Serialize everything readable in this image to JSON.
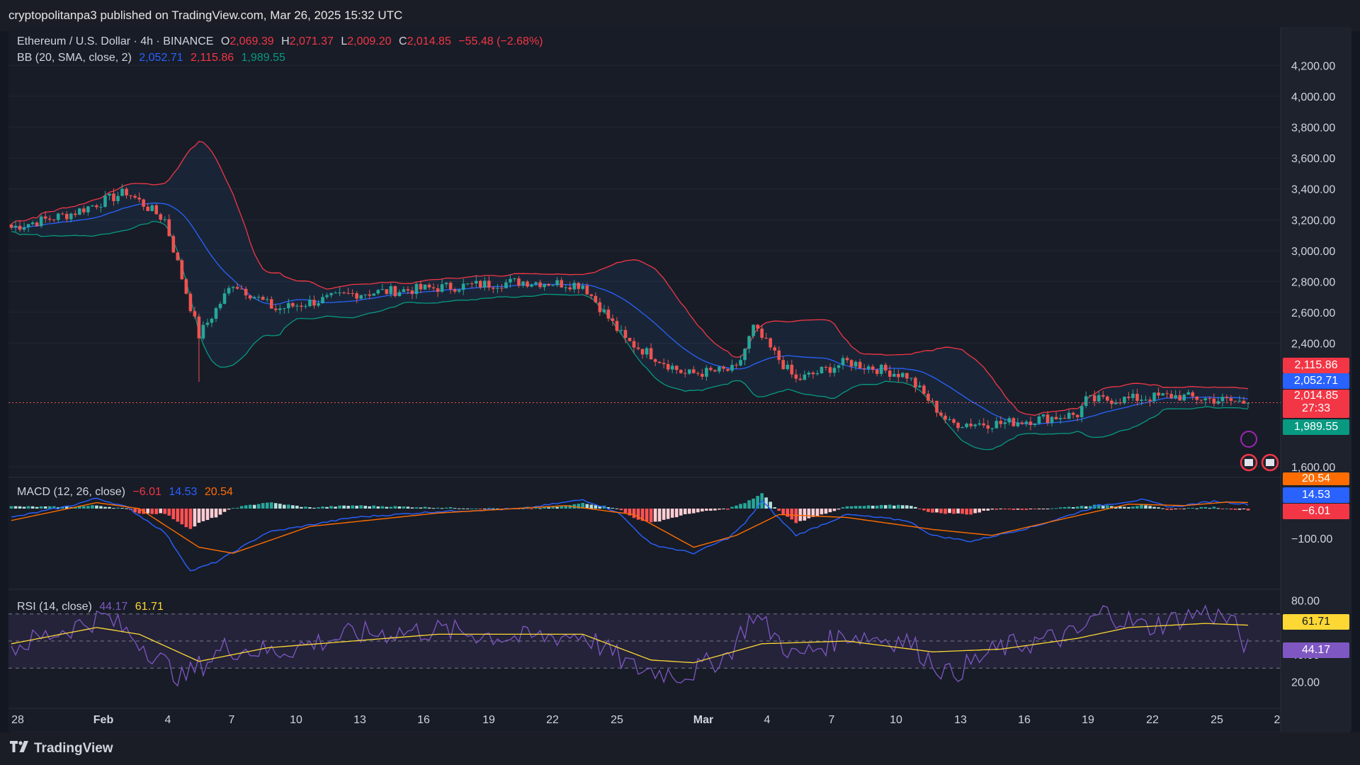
{
  "header": {
    "attribution": "cryptopolitanpa3 published on TradingView.com, Mar 26, 2025 15:32 UTC"
  },
  "footer": {
    "brand": "TradingView"
  },
  "legend": {
    "symbol": "Ethereum / U.S. Dollar · 4h · BINANCE",
    "o_label": "O",
    "o_value": "2,069.39",
    "h_label": "H",
    "h_value": "2,071.37",
    "l_label": "L",
    "l_value": "2,009.20",
    "c_label": "C",
    "c_value": "2,014.85",
    "change": "−55.48 (−2.68%)",
    "bb_label": "BB (20, SMA, close, 2)",
    "bb_basis": "2,052.71",
    "bb_upper": "2,115.86",
    "bb_lower": "1,989.55",
    "macd_label": "MACD (12, 26, close)",
    "macd_hist": "−6.01",
    "macd_line": "14.53",
    "macd_signal": "20.54",
    "rsi_label": "RSI (14, close)",
    "rsi_value": "44.17",
    "rsi_ma": "61.71"
  },
  "price_tags": {
    "bb_upper": "2,115.86",
    "bb_basis": "2,052.71",
    "close": "2,014.85",
    "countdown": "27:33",
    "bb_lower": "1,989.55",
    "macd_signal": "20.54",
    "macd_line": "14.53",
    "macd_hist": "−6.01",
    "rsi_ma": "61.71",
    "rsi": "44.17"
  },
  "colors": {
    "up": "#26a69a",
    "down": "#ef5350",
    "basis": "#2962ff",
    "upper": "#f23645",
    "lower": "#089981",
    "macd": "#2962ff",
    "signal": "#ff6d00",
    "rsi": "#7e57c2",
    "rsi_ma": "#fdd835"
  },
  "chart_data": [
    {
      "type": "candlestick",
      "title": "Ethereum / U.S. Dollar · 4h · BINANCE",
      "y_ticks": [
        "4,200.00",
        "4,000.00",
        "3,800.00",
        "3,600.00",
        "3,400.00",
        "3,200.00",
        "3,000.00",
        "2,800.00",
        "2,600.00",
        "2,400.00",
        "1,600.00"
      ],
      "y_tick_values": [
        4200,
        4000,
        3800,
        3600,
        3400,
        3200,
        3000,
        2800,
        2600,
        2400,
        1600
      ],
      "x_ticks": [
        "28",
        "Feb",
        "4",
        "7",
        "10",
        "13",
        "16",
        "19",
        "22",
        "25",
        "Mar",
        "4",
        "7",
        "10",
        "13",
        "16",
        "19",
        "22",
        "25",
        "2"
      ],
      "ylim": [
        1540,
        4280
      ],
      "close_keypoints": [
        [
          0,
          3150
        ],
        [
          14,
          3240
        ],
        [
          27,
          3380
        ],
        [
          36,
          3200
        ],
        [
          44,
          2450
        ],
        [
          52,
          2790
        ],
        [
          62,
          2620
        ],
        [
          80,
          2720
        ],
        [
          100,
          2760
        ],
        [
          120,
          2800
        ],
        [
          134,
          2780
        ],
        [
          144,
          2420
        ],
        [
          158,
          2200
        ],
        [
          170,
          2230
        ],
        [
          174,
          2500
        ],
        [
          184,
          2160
        ],
        [
          196,
          2280
        ],
        [
          210,
          2190
        ],
        [
          220,
          1880
        ],
        [
          232,
          1880
        ],
        [
          250,
          1940
        ],
        [
          252,
          2030
        ],
        [
          263,
          2040
        ],
        [
          272,
          2060
        ],
        [
          280,
          2040
        ],
        [
          290,
          2014.85
        ]
      ],
      "bb": {
        "basis": 2052.71,
        "upper": 2115.86,
        "lower": 1989.55
      },
      "last_close": 2014.85
    },
    {
      "type": "line",
      "title": "MACD (12, 26, close)",
      "y_ticks": [
        "−100.00"
      ],
      "series": [
        {
          "name": "MACD",
          "keypoints": [
            [
              0,
              -30
            ],
            [
              14,
              10
            ],
            [
              20,
              35
            ],
            [
              27,
              5
            ],
            [
              36,
              -80
            ],
            [
              42,
              -210
            ],
            [
              48,
              -180
            ],
            [
              60,
              -80
            ],
            [
              80,
              -30
            ],
            [
              100,
              -10
            ],
            [
              120,
              0
            ],
            [
              134,
              30
            ],
            [
              142,
              -10
            ],
            [
              150,
              -120
            ],
            [
              160,
              -150
            ],
            [
              168,
              -100
            ],
            [
              172,
              -50
            ],
            [
              176,
              25
            ],
            [
              184,
              -90
            ],
            [
              196,
              -20
            ],
            [
              210,
              -40
            ],
            [
              216,
              -90
            ],
            [
              225,
              -110
            ],
            [
              240,
              -60
            ],
            [
              255,
              10
            ],
            [
              265,
              30
            ],
            [
              272,
              5
            ],
            [
              282,
              25
            ],
            [
              290,
              14.53
            ]
          ]
        },
        {
          "name": "Signal",
          "keypoints": [
            [
              0,
              -40
            ],
            [
              20,
              20
            ],
            [
              30,
              0
            ],
            [
              44,
              -130
            ],
            [
              52,
              -150
            ],
            [
              70,
              -60
            ],
            [
              100,
              -15
            ],
            [
              130,
              10
            ],
            [
              146,
              -20
            ],
            [
              160,
              -130
            ],
            [
              170,
              -90
            ],
            [
              180,
              -20
            ],
            [
              196,
              -30
            ],
            [
              216,
              -70
            ],
            [
              230,
              -90
            ],
            [
              245,
              -40
            ],
            [
              262,
              15
            ],
            [
              275,
              10
            ],
            [
              285,
              22
            ],
            [
              290,
              20.54
            ]
          ]
        },
        {
          "name": "Histogram",
          "last": -6.01
        }
      ]
    },
    {
      "type": "line",
      "title": "RSI (14, close)",
      "y_ticks": [
        "80.00",
        "40.00",
        "20.00"
      ],
      "ylim": [
        15,
        85
      ],
      "series": [
        {
          "name": "RSI",
          "keypoints": [
            [
              0,
              45
            ],
            [
              14,
              60
            ],
            [
              22,
              68
            ],
            [
              30,
              50
            ],
            [
              40,
              22
            ],
            [
              50,
              45
            ],
            [
              62,
              42
            ],
            [
              80,
              55
            ],
            [
              100,
              58
            ],
            [
              120,
              52
            ],
            [
              134,
              55
            ],
            [
              146,
              30
            ],
            [
              158,
              25
            ],
            [
              168,
              40
            ],
            [
              174,
              70
            ],
            [
              184,
              38
            ],
            [
              196,
              55
            ],
            [
              210,
              50
            ],
            [
              220,
              25
            ],
            [
              232,
              45
            ],
            [
              250,
              55
            ],
            [
              256,
              72
            ],
            [
              266,
              60
            ],
            [
              280,
              72
            ],
            [
              286,
              65
            ],
            [
              290,
              44.17
            ]
          ]
        },
        {
          "name": "RSI-MA",
          "keypoints": [
            [
              0,
              48
            ],
            [
              20,
              60
            ],
            [
              30,
              55
            ],
            [
              44,
              35
            ],
            [
              60,
              45
            ],
            [
              100,
              55
            ],
            [
              134,
              55
            ],
            [
              150,
              36
            ],
            [
              160,
              34
            ],
            [
              176,
              48
            ],
            [
              196,
              50
            ],
            [
              216,
              42
            ],
            [
              232,
              44
            ],
            [
              250,
              52
            ],
            [
              262,
              60
            ],
            [
              280,
              63
            ],
            [
              290,
              61.71
            ]
          ]
        }
      ]
    }
  ]
}
